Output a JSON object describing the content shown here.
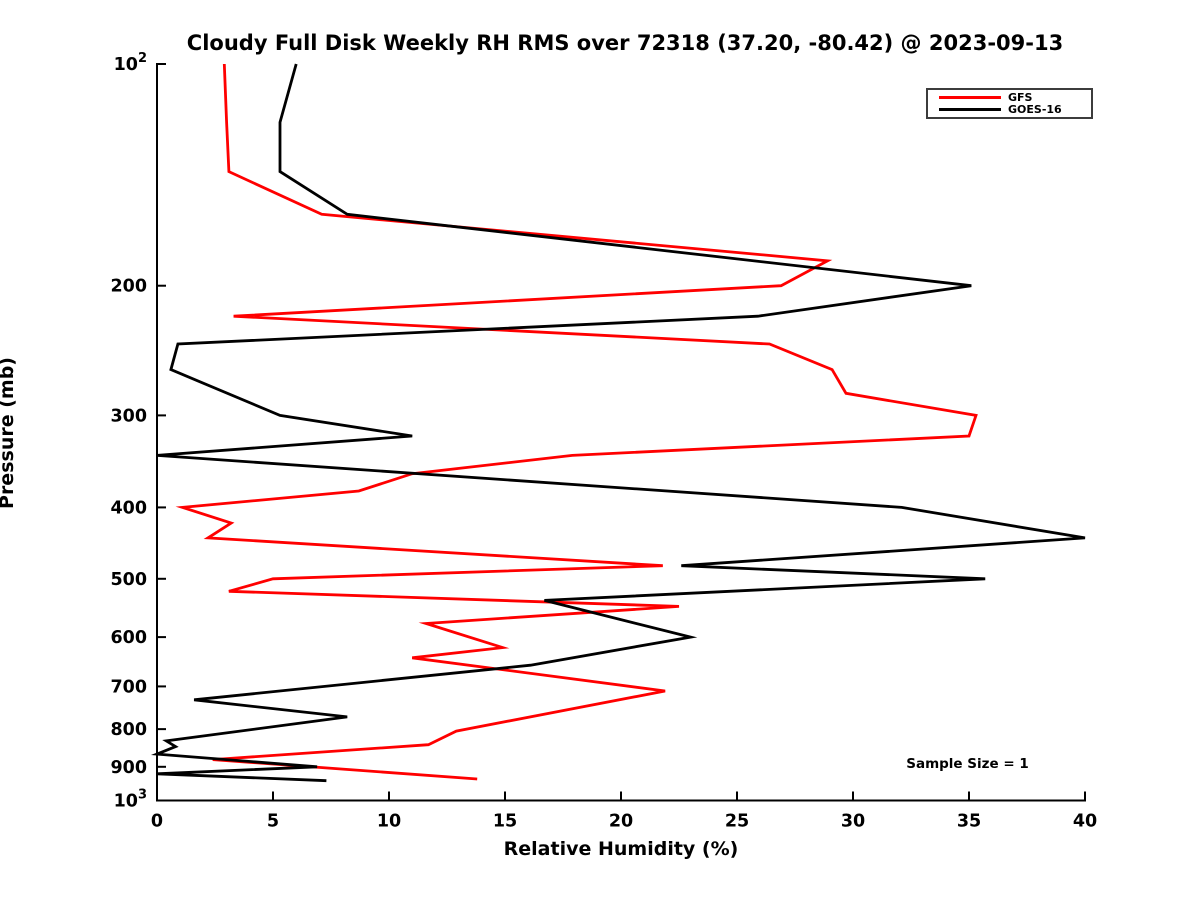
{
  "title": "Cloudy Full Disk Weekly RH RMS over 72318 (37.20, -80.42) @ 2023-09-13",
  "chart_data": {
    "type": "line",
    "title": "Cloudy Full Disk Weekly RH RMS over 72318 (37.20, -80.42) @ 2023-09-13",
    "xlabel": "Relative Humidity (%)",
    "ylabel": "Pressure (mb)",
    "annotation": "Sample Size = 1",
    "x_axis": {
      "min": 0,
      "max": 40,
      "ticks": [
        0,
        5,
        10,
        15,
        20,
        25,
        30,
        35,
        40
      ]
    },
    "y_axis": {
      "scale": "log",
      "min": 100,
      "max": 1000,
      "direction": "increasing-down",
      "ticks": [
        {
          "value": 100,
          "label": "10^2"
        },
        {
          "value": 200,
          "label": "200"
        },
        {
          "value": 300,
          "label": "300"
        },
        {
          "value": 400,
          "label": "400"
        },
        {
          "value": 500,
          "label": "500"
        },
        {
          "value": 600,
          "label": "600"
        },
        {
          "value": 700,
          "label": "700"
        },
        {
          "value": 800,
          "label": "800"
        },
        {
          "value": 900,
          "label": "900"
        },
        {
          "value": 1000,
          "label": "10^3"
        }
      ]
    },
    "legend": {
      "position": "top-right",
      "entries": [
        "GFS",
        "GOES-16"
      ]
    },
    "series": [
      {
        "name": "GFS",
        "color": "#ff0000",
        "points_format": [
          "relative_humidity_pct",
          "pressure_mb"
        ],
        "points": [
          [
            2.9,
            100
          ],
          [
            3.0,
            120
          ],
          [
            3.1,
            140
          ],
          [
            7.1,
            160
          ],
          [
            28.9,
            185
          ],
          [
            26.9,
            200
          ],
          [
            3.3,
            220
          ],
          [
            26.4,
            240
          ],
          [
            29.1,
            260
          ],
          [
            29.7,
            280
          ],
          [
            35.3,
            300
          ],
          [
            35.0,
            320
          ],
          [
            17.9,
            340
          ],
          [
            11.0,
            360
          ],
          [
            8.7,
            380
          ],
          [
            1.1,
            400
          ],
          [
            3.2,
            420
          ],
          [
            2.2,
            440
          ],
          [
            21.8,
            480
          ],
          [
            5.0,
            500
          ],
          [
            3.1,
            520
          ],
          [
            22.5,
            545
          ],
          [
            11.6,
            575
          ],
          [
            14.9,
            620
          ],
          [
            11.0,
            640
          ],
          [
            21.9,
            710
          ],
          [
            12.9,
            805
          ],
          [
            11.7,
            840
          ],
          [
            2.4,
            880
          ],
          [
            13.8,
            935
          ]
        ]
      },
      {
        "name": "GOES-16",
        "color": "#000000",
        "points_format": [
          "relative_humidity_pct",
          "pressure_mb"
        ],
        "points": [
          [
            6.0,
            100
          ],
          [
            5.3,
            120
          ],
          [
            5.3,
            140
          ],
          [
            8.2,
            160
          ],
          [
            35.1,
            200
          ],
          [
            25.9,
            220
          ],
          [
            0.9,
            240
          ],
          [
            0.6,
            260
          ],
          [
            5.3,
            300
          ],
          [
            11.0,
            320
          ],
          [
            0.0,
            340
          ],
          [
            32.1,
            400
          ],
          [
            40.0,
            440
          ],
          [
            22.6,
            480
          ],
          [
            35.7,
            500
          ],
          [
            16.7,
            535
          ],
          [
            23.0,
            600
          ],
          [
            16.1,
            655
          ],
          [
            1.6,
            730
          ],
          [
            8.2,
            770
          ],
          [
            0.4,
            830
          ],
          [
            0.8,
            845
          ],
          [
            0.0,
            865
          ],
          [
            6.9,
            900
          ],
          [
            0.0,
            920
          ],
          [
            7.3,
            940
          ]
        ]
      }
    ]
  },
  "colors": {
    "background": "#ffffff",
    "axis": "#000000",
    "gfs_line": "#ff0000",
    "goes16_line": "#000000",
    "legend_border": "#3c3c3c"
  }
}
